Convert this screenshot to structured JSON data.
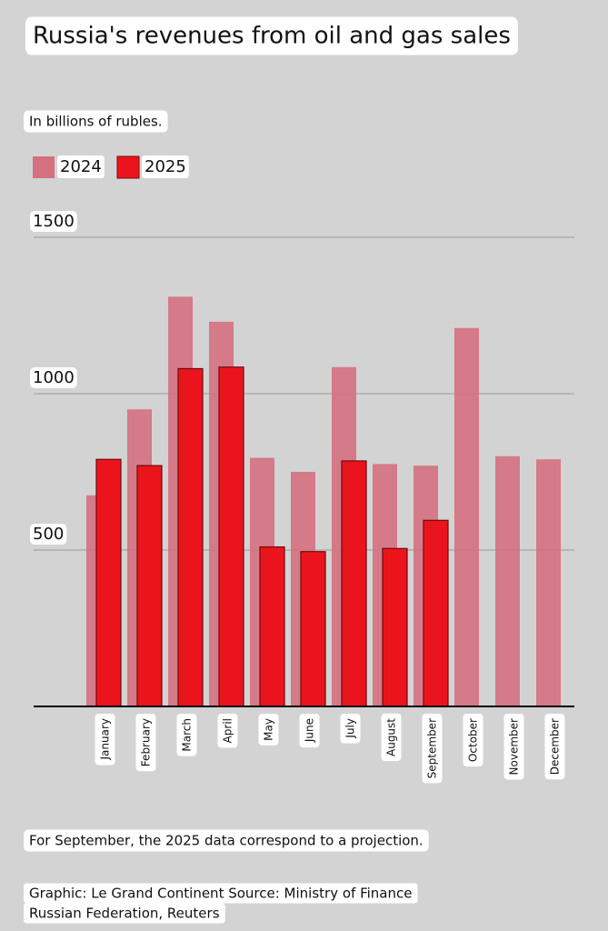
{
  "chart_data": {
    "type": "bar",
    "title": "Russia's revenues from oil and gas sales",
    "subtitle": "In billions of rubles.",
    "categories": [
      "January",
      "February",
      "March",
      "April",
      "May",
      "June",
      "July",
      "August",
      "September",
      "October",
      "November",
      "December"
    ],
    "series": [
      {
        "name": "2024",
        "color": "#d4707f",
        "values": [
          675,
          950,
          1310,
          1230,
          795,
          750,
          1085,
          775,
          770,
          1210,
          800,
          790
        ]
      },
      {
        "name": "2025",
        "color": "#ec141c",
        "values": [
          790,
          770,
          1080,
          1085,
          510,
          495,
          785,
          505,
          595,
          null,
          null,
          null
        ]
      }
    ],
    "ylim": [
      0,
      1500
    ],
    "yticks": [
      500,
      1000,
      1500
    ],
    "grid": true,
    "note": "For September, the 2025 data correspond to a projection.",
    "source": [
      "Graphic: Le Grand Continent Source: Ministry of Finance",
      "Russian Federation, Reuters"
    ]
  }
}
